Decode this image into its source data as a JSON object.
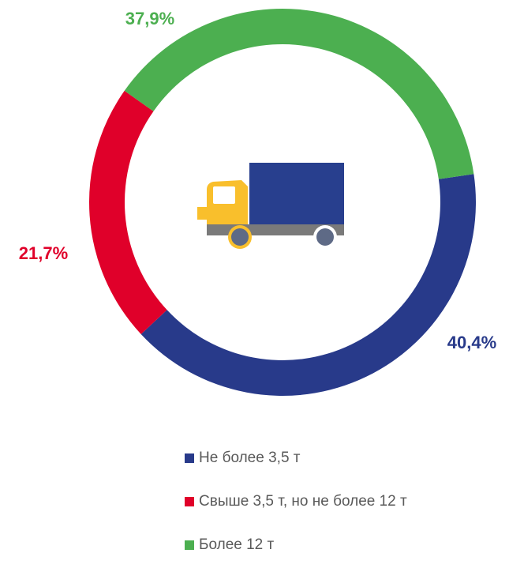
{
  "chart_data": {
    "type": "donut",
    "categories": [
      "Не более 3,5 т",
      "Свыше 3,5 т, но не более 12 т",
      "Более 12 т"
    ],
    "values": [
      40.4,
      21.7,
      37.9
    ],
    "value_labels": [
      "40,4%",
      "21,7%",
      "37,9%"
    ],
    "colors": [
      "#283a8a",
      "#e0002a",
      "#4caf50"
    ],
    "legend": "bottom"
  }
}
